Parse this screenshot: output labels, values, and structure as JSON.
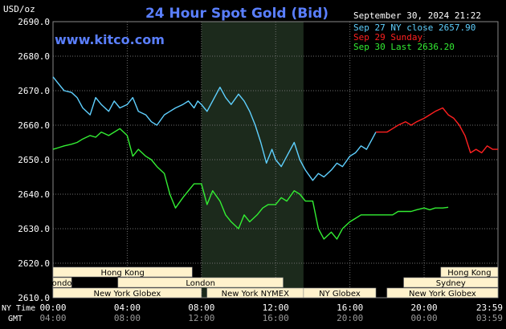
{
  "chart_data": {
    "type": "line",
    "title": "24 Hour Spot Gold (Bid)",
    "watermark": "www.kitco.com",
    "y_unit": "USD/oz",
    "timestamp": "September 30, 2024 21:22",
    "ylim": [
      2610,
      2690
    ],
    "yticks": [
      "2690.0",
      "2680.0",
      "2670.0",
      "2660.0",
      "2650.0",
      "2640.0",
      "2630.0",
      "2620.0",
      "2610.0"
    ],
    "yvalues": [
      2690,
      2680,
      2670,
      2660,
      2650,
      2640,
      2630,
      2620,
      2610
    ],
    "x_row_label": "NY Time",
    "x_row2_label": "GMT",
    "xticks_ny": [
      "00:00",
      "04:00",
      "08:00",
      "12:00",
      "16:00",
      "20:00",
      "23:59"
    ],
    "xticks_gmt": [
      "04:00",
      "08:00",
      "12:00",
      "16:00",
      "20:00",
      "00:00",
      "03:59"
    ],
    "xtick_hours": [
      0,
      4,
      8,
      12,
      16,
      20,
      23.98
    ],
    "highlight_band": {
      "start_hour": 8.0,
      "end_hour": 13.5,
      "color": "#1c2a1c"
    },
    "colors": {
      "grid": "#6f6f6f",
      "axis_text": "#ffffff",
      "title": "#5a7fff",
      "watermark": "#5a7fff",
      "session_fill": "#fff2cc",
      "session_text": "#000000"
    },
    "legend": {
      "placement": "top-right",
      "items": [
        {
          "label": "Sep 27 NY close 2657.90",
          "color": "#5fd0ff"
        },
        {
          "label": "Sep 29 Sunday",
          "color": "#ff2020"
        },
        {
          "label": "Sep 30 Last 2636.20",
          "color": "#33ee33"
        }
      ]
    },
    "series": [
      {
        "name": "Sep 27 NY close 2657.90",
        "color": "#5fd0ff",
        "x": [
          0,
          0.3,
          0.6,
          1.0,
          1.3,
          1.6,
          2.0,
          2.3,
          2.6,
          3.0,
          3.3,
          3.6,
          4.0,
          4.3,
          4.6,
          5.0,
          5.3,
          5.6,
          6.0,
          6.3,
          6.6,
          7.0,
          7.3,
          7.6,
          7.8,
          8.0,
          8.3,
          8.6,
          9.0,
          9.3,
          9.6,
          10.0,
          10.3,
          10.6,
          10.9,
          11.2,
          11.5,
          11.8,
          12.0,
          12.3,
          12.6,
          13.0,
          13.3,
          13.6,
          14.0,
          14.3,
          14.6,
          15.0,
          15.3,
          15.6,
          16.0,
          16.3,
          16.6,
          16.9,
          17.2,
          17.4
        ],
        "y": [
          2674,
          2672,
          2670,
          2669.5,
          2668,
          2665,
          2663,
          2668,
          2666,
          2664,
          2667,
          2665,
          2666,
          2668,
          2664,
          2663,
          2661,
          2660,
          2663,
          2664,
          2665,
          2666,
          2667,
          2665,
          2667,
          2666,
          2664,
          2667,
          2671,
          2668,
          2666,
          2669,
          2667,
          2664,
          2660,
          2655,
          2649,
          2653,
          2650,
          2648,
          2651,
          2655,
          2650,
          2647,
          2644,
          2646,
          2645,
          2647,
          2649,
          2648,
          2651,
          2652,
          2654,
          2653,
          2656,
          2658
        ]
      },
      {
        "name": "Sep 29 Sunday",
        "color": "#ff2020",
        "x": [
          17.4,
          17.7,
          18.0,
          18.3,
          18.6,
          19.0,
          19.3,
          19.6,
          20.0,
          20.3,
          20.6,
          21.0,
          21.3,
          21.6,
          21.9,
          22.2,
          22.5,
          22.8,
          23.1,
          23.4,
          23.7,
          23.98
        ],
        "y": [
          2658,
          2658,
          2658,
          2659,
          2660,
          2661,
          2660,
          2661,
          2662,
          2663,
          2664,
          2665,
          2663,
          2662,
          2660,
          2657,
          2652,
          2653,
          2652,
          2654,
          2653,
          2653
        ]
      },
      {
        "name": "Sep 30 Last 2636.20",
        "color": "#33ee33",
        "x": [
          0,
          0.3,
          0.6,
          1.0,
          1.3,
          1.6,
          2.0,
          2.3,
          2.6,
          3.0,
          3.3,
          3.6,
          4.0,
          4.3,
          4.6,
          5.0,
          5.3,
          5.6,
          6.0,
          6.3,
          6.6,
          7.0,
          7.3,
          7.6,
          8.0,
          8.3,
          8.6,
          9.0,
          9.3,
          9.6,
          10.0,
          10.3,
          10.6,
          11.0,
          11.3,
          11.6,
          12.0,
          12.3,
          12.6,
          13.0,
          13.3,
          13.6,
          14.0,
          14.3,
          14.6,
          15.0,
          15.3,
          15.6,
          16.0,
          16.3,
          16.6,
          17.0,
          17.3,
          17.6,
          18.0,
          18.3,
          18.6,
          19.0,
          19.3,
          19.6,
          20.0,
          20.3,
          20.6,
          21.0,
          21.3
        ],
        "y": [
          2653,
          2653.5,
          2654,
          2654.5,
          2655,
          2656,
          2657,
          2656.5,
          2658,
          2657,
          2658,
          2659,
          2657,
          2651,
          2653,
          2651,
          2650,
          2648,
          2646,
          2640,
          2636,
          2639,
          2641,
          2643,
          2643,
          2637,
          2641,
          2638,
          2634,
          2632,
          2630,
          2634,
          2632,
          2634,
          2636,
          2637,
          2637,
          2639,
          2638,
          2641,
          2640,
          2638,
          2638,
          2630,
          2627,
          2629,
          2627,
          2630,
          2632,
          2633,
          2634,
          2634,
          2634,
          2634,
          2634,
          2634,
          2635,
          2635,
          2635,
          2635.5,
          2636,
          2635.5,
          2636,
          2636,
          2636.2
        ]
      }
    ],
    "sessions": [
      {
        "label": "Hong Kong",
        "row": 0,
        "start_hour": 0.0,
        "end_hour": 7.5
      },
      {
        "label": "Hong Kong",
        "row": 0,
        "start_hour": 20.9,
        "end_hour": 23.98
      },
      {
        "label": "London",
        "row": 1,
        "start_hour": 0.0,
        "end_hour": 1.0
      },
      {
        "label": "London",
        "row": 1,
        "start_hour": 3.5,
        "end_hour": 12.4
      },
      {
        "label": "Sydney",
        "row": 1,
        "start_hour": 18.9,
        "end_hour": 23.98
      },
      {
        "label": "New York Globex",
        "row": 2,
        "start_hour": 0.0,
        "end_hour": 8.0
      },
      {
        "label": "New York NYMEX",
        "row": 2,
        "start_hour": 8.3,
        "end_hour": 13.5
      },
      {
        "label": "NY Globex",
        "row": 2,
        "start_hour": 13.5,
        "end_hour": 17.4
      },
      {
        "label": "New York Globex",
        "row": 2,
        "start_hour": 18.0,
        "end_hour": 23.98
      }
    ]
  }
}
